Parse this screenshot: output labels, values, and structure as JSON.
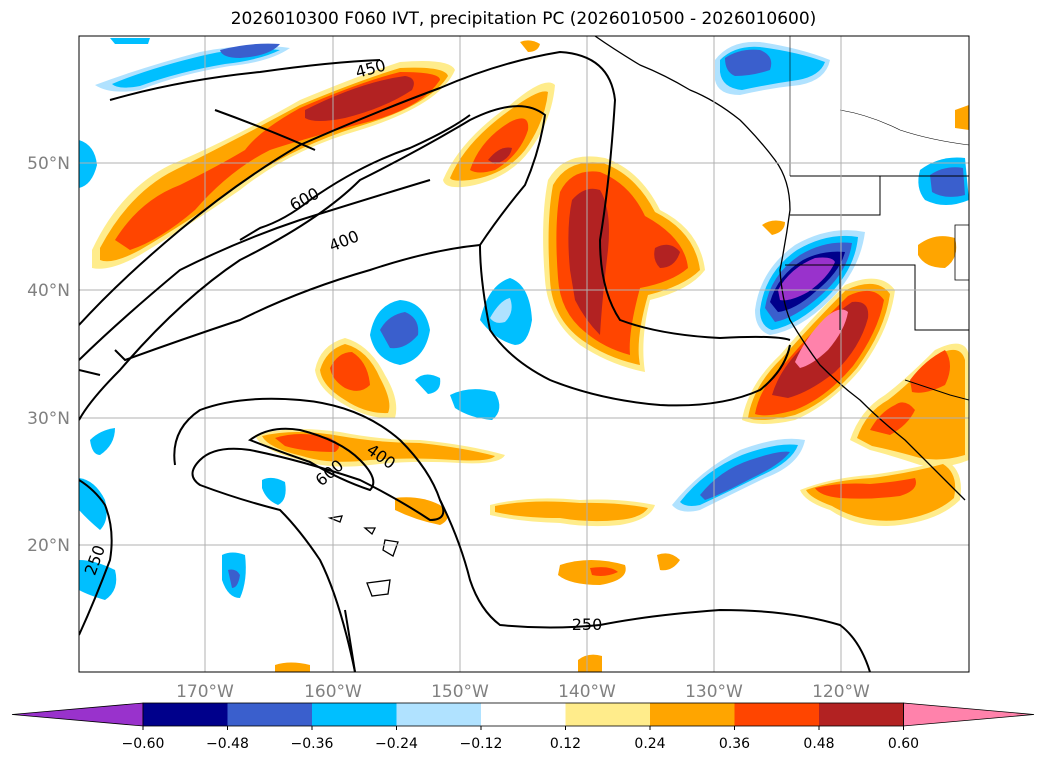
{
  "title": "2026010300 F060 IVT, precipitation PC (2026010500 - 2026010600)",
  "lat_labels": [
    "50°N",
    "40°N",
    "30°N",
    "20°N"
  ],
  "lon_labels": [
    "170°W",
    "160°W",
    "150°W",
    "140°W",
    "130°W",
    "120°W"
  ],
  "colorbar": {
    "ticks": [
      "−0.60",
      "−0.48",
      "−0.36",
      "−0.24",
      "−0.12",
      "0.12",
      "0.24",
      "0.36",
      "0.48",
      "0.60"
    ],
    "colors": [
      "#9932cc",
      "#00008b",
      "#3a5fcd",
      "#00bfff",
      "#b0e2ff",
      "#ffffff",
      "#ffec8b",
      "#ffa500",
      "#ff4500",
      "#b22222",
      "#ff82ab"
    ]
  },
  "contour_labels": [
    "450",
    "600",
    "400",
    "600",
    "400",
    "250",
    "250"
  ],
  "colors": {
    "purple": "#9932cc",
    "navy": "#00008b",
    "royal": "#3a5fcd",
    "sky": "#00bfff",
    "lightblue": "#b0e2ff",
    "yellow": "#ffec8b",
    "orange": "#ffa500",
    "red": "#ff4500",
    "darkred": "#b22222",
    "pink": "#ff82ab"
  }
}
